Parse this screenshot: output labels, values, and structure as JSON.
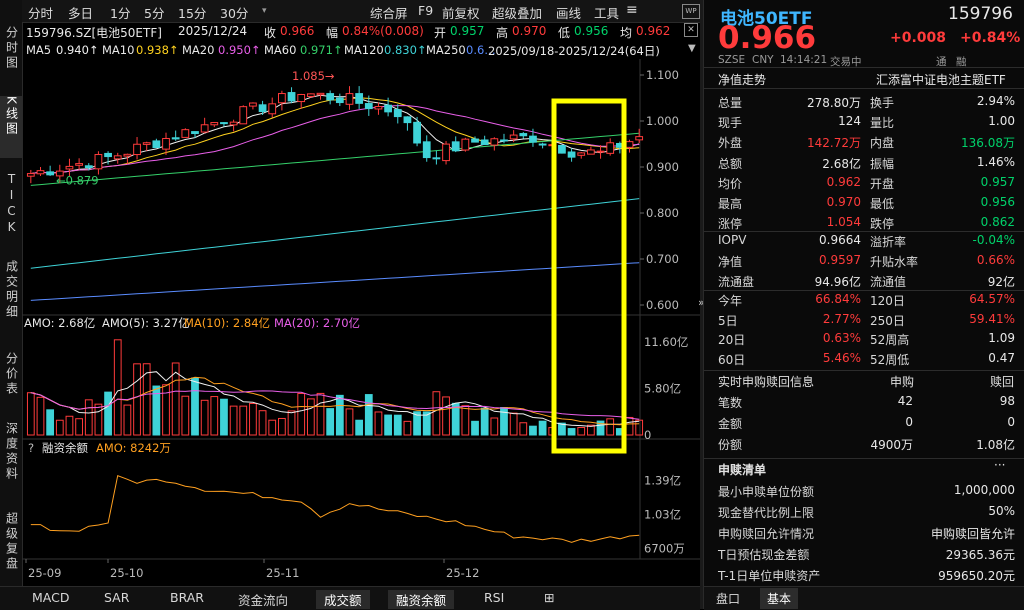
{
  "left_tabs": [
    "分时图",
    "K线图",
    "TICK",
    "成交明细",
    "分价表",
    "深度资料",
    "超级复盘"
  ],
  "toolbar": {
    "periods": [
      "分时",
      "多日",
      "1分",
      "5分",
      "15分",
      "30分"
    ],
    "actions": [
      "综合屏",
      "F9",
      "前复权",
      "超级叠加",
      "画线",
      "工具"
    ],
    "more": "▾"
  },
  "info": {
    "code": "159796.SZ[电池50ETF]",
    "date": "2025/12/24",
    "close_label": "收",
    "close": "0.966",
    "chg_label": "幅",
    "chg": "0.84%(0.008)",
    "open_label": "开",
    "open": "0.957",
    "high_label": "高",
    "high": "0.970",
    "low_label": "低",
    "low": "0.956",
    "avg_label": "均",
    "avg": "0.962"
  },
  "ma_line": {
    "ma5": "MA5",
    "ma5_v": "0.940↑",
    "ma10": "MA10",
    "ma10_v": "0.938↑",
    "ma20": "MA20",
    "ma20_v": "0.950↑",
    "ma60": "MA60",
    "ma60_v": "0.971↑",
    "ma120": "MA120",
    "ma120_v": "0.830↑",
    "ma250": "MA250",
    "ma250_v": "0.6…",
    "range": "2025/09/18-2025/12/24(64日)"
  },
  "chart": {
    "price_ticks": [
      "1.100",
      "1.000",
      "0.900",
      "0.800",
      "0.700",
      "0.600"
    ],
    "high_annot": "1.085→",
    "low_annot": "←0.879",
    "amo_label": "AMO: 2.68亿",
    "amo5": "AMO(5): 3.27亿",
    "ma10": "MA(10): 2.84亿",
    "ma20": "MA(20): 2.70亿",
    "vol_ticks": [
      "11.60亿",
      "5.80亿",
      "0"
    ],
    "margin_q": "?",
    "margin_label": "融资余额",
    "margin_amo": "AMO: 8242万",
    "margin_ticks": [
      "1.39亿",
      "1.03亿",
      "6700万"
    ],
    "x_ticks": [
      "25-09",
      "25-10",
      "25-11",
      "25-12"
    ],
    "icons": [
      "≡",
      "▼"
    ]
  },
  "chart_data": {
    "type": "candlestick",
    "x": [
      "25-09",
      "25-10",
      "25-11",
      "25-12"
    ],
    "ylim": [
      0.58,
      1.11
    ],
    "high": 1.085,
    "low": 0.879,
    "last": {
      "open": 0.957,
      "high": 0.97,
      "low": 0.956,
      "close": 0.966
    }
  },
  "bottom_tabs": [
    "MACD",
    "SAR",
    "BRAR",
    "资金流向",
    "成交额",
    "融资余额",
    "RSI",
    "⊞"
  ],
  "quote": {
    "name": "电池50ETF",
    "code": "159796",
    "price": "0.966",
    "change": "+0.008",
    "pct": "+0.84%",
    "market": "SZSE",
    "currency": "CNY",
    "time": "14:14:21",
    "status": "交易中",
    "tag1": "通",
    "tag2": "融",
    "net_trend": "净值走势",
    "fund": "汇添富中证电池主题ETF"
  },
  "stats": [
    [
      "总量",
      "278.80万",
      "换手",
      "2.94%"
    ],
    [
      "现手",
      "124",
      "量比",
      "1.00"
    ],
    [
      "外盘",
      "142.72万",
      "内盘",
      "136.08万"
    ],
    [
      "总额",
      "2.68亿",
      "振幅",
      "1.46%"
    ],
    [
      "均价",
      "0.962",
      "开盘",
      "0.957"
    ],
    [
      "最高",
      "0.970",
      "最低",
      "0.956"
    ],
    [
      "涨停",
      "1.054",
      "跌停",
      "0.862"
    ]
  ],
  "stats2": [
    [
      "IOPV",
      "0.9664",
      "溢折率",
      "-0.04%"
    ],
    [
      "净值",
      "0.9597",
      "升贴水率",
      "0.66%"
    ],
    [
      "流通盘",
      "94.96亿",
      "流通值",
      "92亿"
    ]
  ],
  "perf": [
    [
      "今年",
      "66.84%",
      "120日",
      "64.57%"
    ],
    [
      "5日",
      "2.77%",
      "250日",
      "59.41%"
    ],
    [
      "20日",
      "0.63%",
      "52周高",
      "1.09"
    ],
    [
      "60日",
      "5.46%",
      "52周低",
      "0.47"
    ]
  ],
  "sub": {
    "title": "实时申购赎回信息",
    "col1": "申购",
    "col2": "赎回",
    "rows": [
      [
        "笔数",
        "42",
        "98"
      ],
      [
        "金额",
        "0",
        "0"
      ],
      [
        "份额",
        "4900万",
        "1.08亿"
      ]
    ]
  },
  "list": {
    "title": "申赎清单",
    "more": "···",
    "rows": [
      [
        "最小申赎单位份额",
        "1,000,000"
      ],
      [
        "现金替代比例上限",
        "50%"
      ],
      [
        "申购赎回允许情况",
        "申购赎回皆允许"
      ],
      [
        "T日预估现金差额",
        "29365.36元"
      ],
      [
        "T-1日单位申赎资产",
        "959650.20元"
      ]
    ]
  },
  "right_tabs": [
    "盘口",
    "基本"
  ],
  "collapse": "»",
  "colors": {
    "up": "#ff3b3b",
    "down": "#00d26a",
    "cyan": "#3fd3d8",
    "highlight": "#ffff00"
  }
}
